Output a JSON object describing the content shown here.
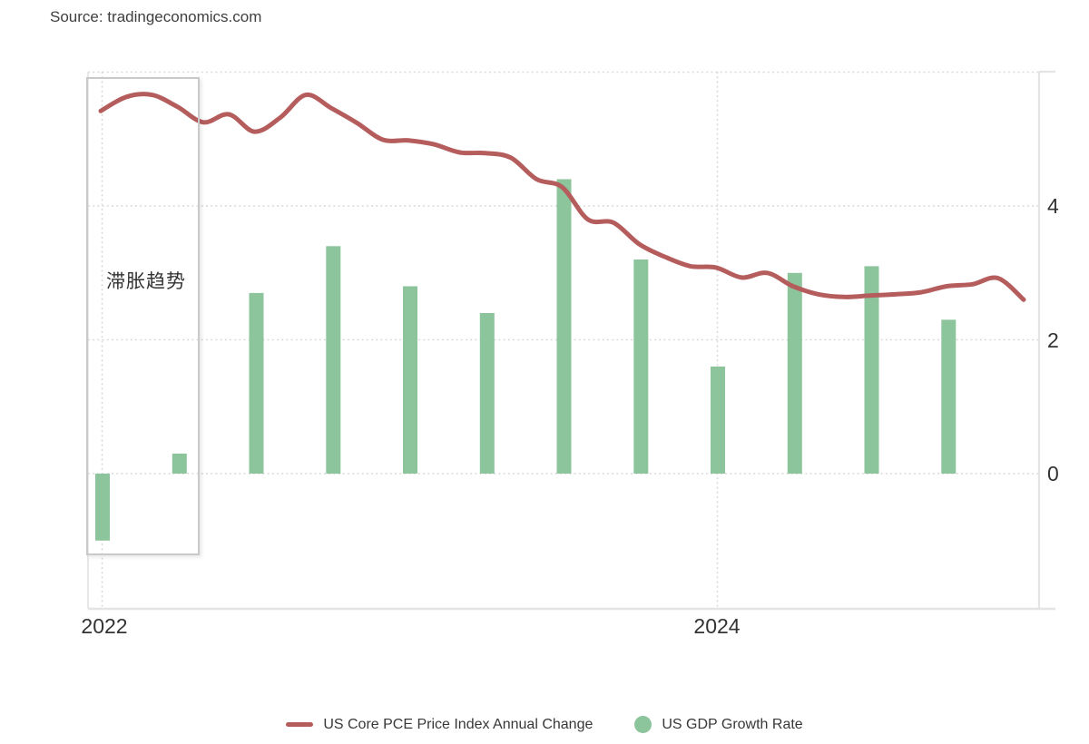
{
  "page": {
    "source": "Source: tradingeconomics.com"
  },
  "annotation": {
    "label": "滞胀趋势"
  },
  "axes": {
    "y_tick_labels": [
      "4",
      "2",
      "0"
    ],
    "x_tick_labels": [
      "2022",
      "2024"
    ]
  },
  "legend": {
    "items": [
      {
        "label": "US Core PCE Price Index Annual Change",
        "color": "#b55d5d",
        "swatch": "line"
      },
      {
        "label": "US GDP Growth Rate",
        "color": "#8cc49c",
        "swatch": "circle"
      }
    ]
  },
  "chart_data": {
    "type": "mixed",
    "title": "",
    "xlabel": "",
    "ylabel": "",
    "ylim": [
      -2,
      6
    ],
    "y_gridlines": [
      6,
      4,
      2,
      0
    ],
    "x_gridline_years": [
      "2022",
      "2024"
    ],
    "grid": "dotted",
    "legend_position": "bottom",
    "series": [
      {
        "name": "US Core PCE Price Index Annual Change",
        "type": "line",
        "color": "#b55d5d",
        "x": [
          "2022-01",
          "2022-02",
          "2022-03",
          "2022-04",
          "2022-05",
          "2022-06",
          "2022-07",
          "2022-08",
          "2022-09",
          "2022-10",
          "2022-11",
          "2022-12",
          "2023-01",
          "2023-02",
          "2023-03",
          "2023-04",
          "2023-05",
          "2023-06",
          "2023-07",
          "2023-08",
          "2023-09",
          "2023-10",
          "2023-11",
          "2023-12",
          "2024-01",
          "2024-02",
          "2024-03",
          "2024-04",
          "2024-05",
          "2024-06",
          "2024-07",
          "2024-08",
          "2024-09",
          "2024-10",
          "2024-11",
          "2024-12",
          "2025-01"
        ],
        "values": [
          5.42,
          5.63,
          5.66,
          5.48,
          5.25,
          5.37,
          5.11,
          5.32,
          5.66,
          5.46,
          5.24,
          4.99,
          4.98,
          4.92,
          4.8,
          4.79,
          4.72,
          4.4,
          4.28,
          3.8,
          3.75,
          3.43,
          3.24,
          3.1,
          3.08,
          2.93,
          3.0,
          2.8,
          2.68,
          2.64,
          2.66,
          2.68,
          2.71,
          2.8,
          2.83,
          2.92,
          2.6
        ]
      },
      {
        "name": "US GDP Growth Rate",
        "type": "bar",
        "color": "#8cc49c",
        "categories": [
          "Q1 2022",
          "Q2 2022",
          "Q3 2022",
          "Q4 2022",
          "Q1 2023",
          "Q2 2023",
          "Q3 2023",
          "Q4 2023",
          "Q1 2024",
          "Q2 2024",
          "Q3 2024",
          "Q4 2024"
        ],
        "values": [
          -1.0,
          0.3,
          2.7,
          3.4,
          2.8,
          2.4,
          4.4,
          3.2,
          1.6,
          3.0,
          3.1,
          2.3
        ]
      }
    ],
    "annotations": [
      {
        "text": "滞胀趋势",
        "region": "Q1-Q2 2022"
      }
    ]
  }
}
